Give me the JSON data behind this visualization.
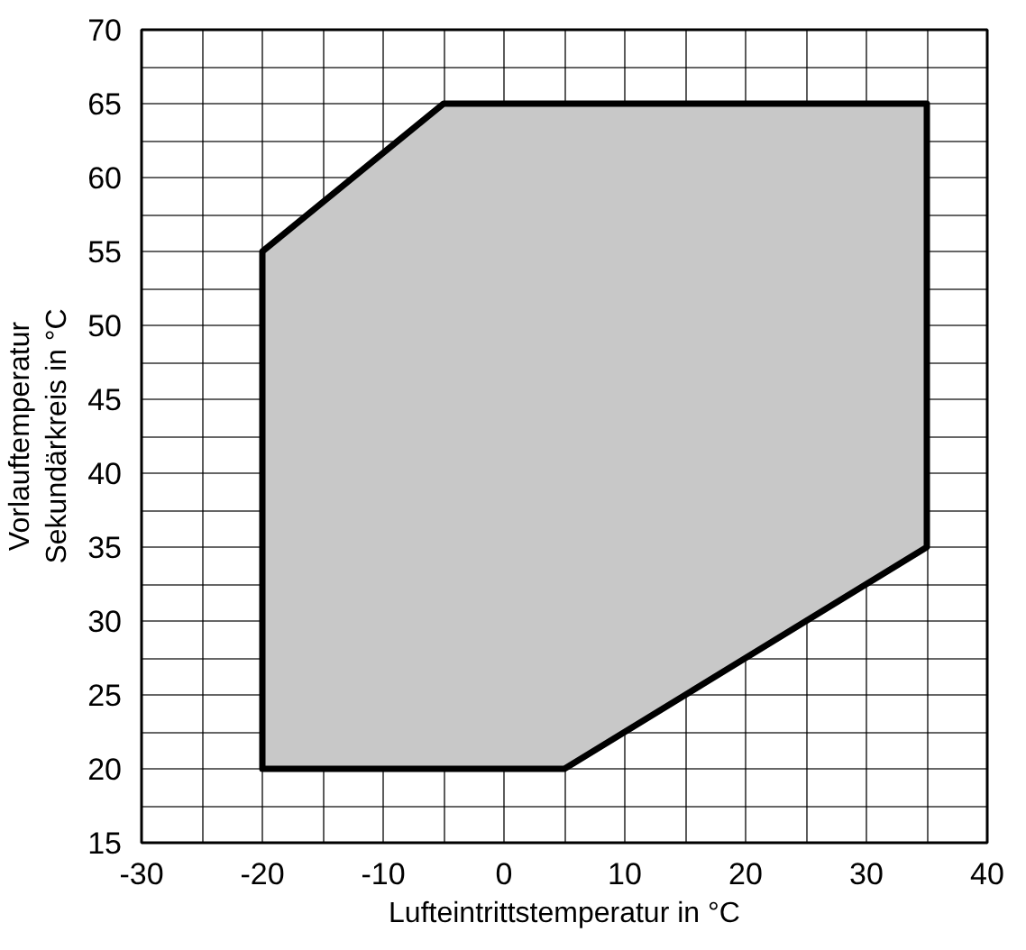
{
  "chart_data": {
    "type": "area",
    "xlabel": "Lufteintrittstemperatur in °C",
    "ylabel": "Vorlauftemperatur\nSekundärkreis in °C",
    "series": [
      {
        "color": "#c8c8c8",
        "x": [
          -20,
          -20,
          -5,
          35,
          35,
          5,
          -20
        ],
        "values": [
          20,
          55,
          65,
          65,
          35,
          20,
          20
        ]
      }
    ],
    "xlim": [
      -30,
      40
    ],
    "ylim": [
      15,
      70
    ],
    "xticks": [
      -30,
      -20,
      -10,
      0,
      10,
      20,
      30,
      40
    ],
    "yticks": [
      15,
      20,
      25,
      30,
      35,
      40,
      45,
      50,
      55,
      60,
      65,
      70
    ],
    "grid": true
  }
}
